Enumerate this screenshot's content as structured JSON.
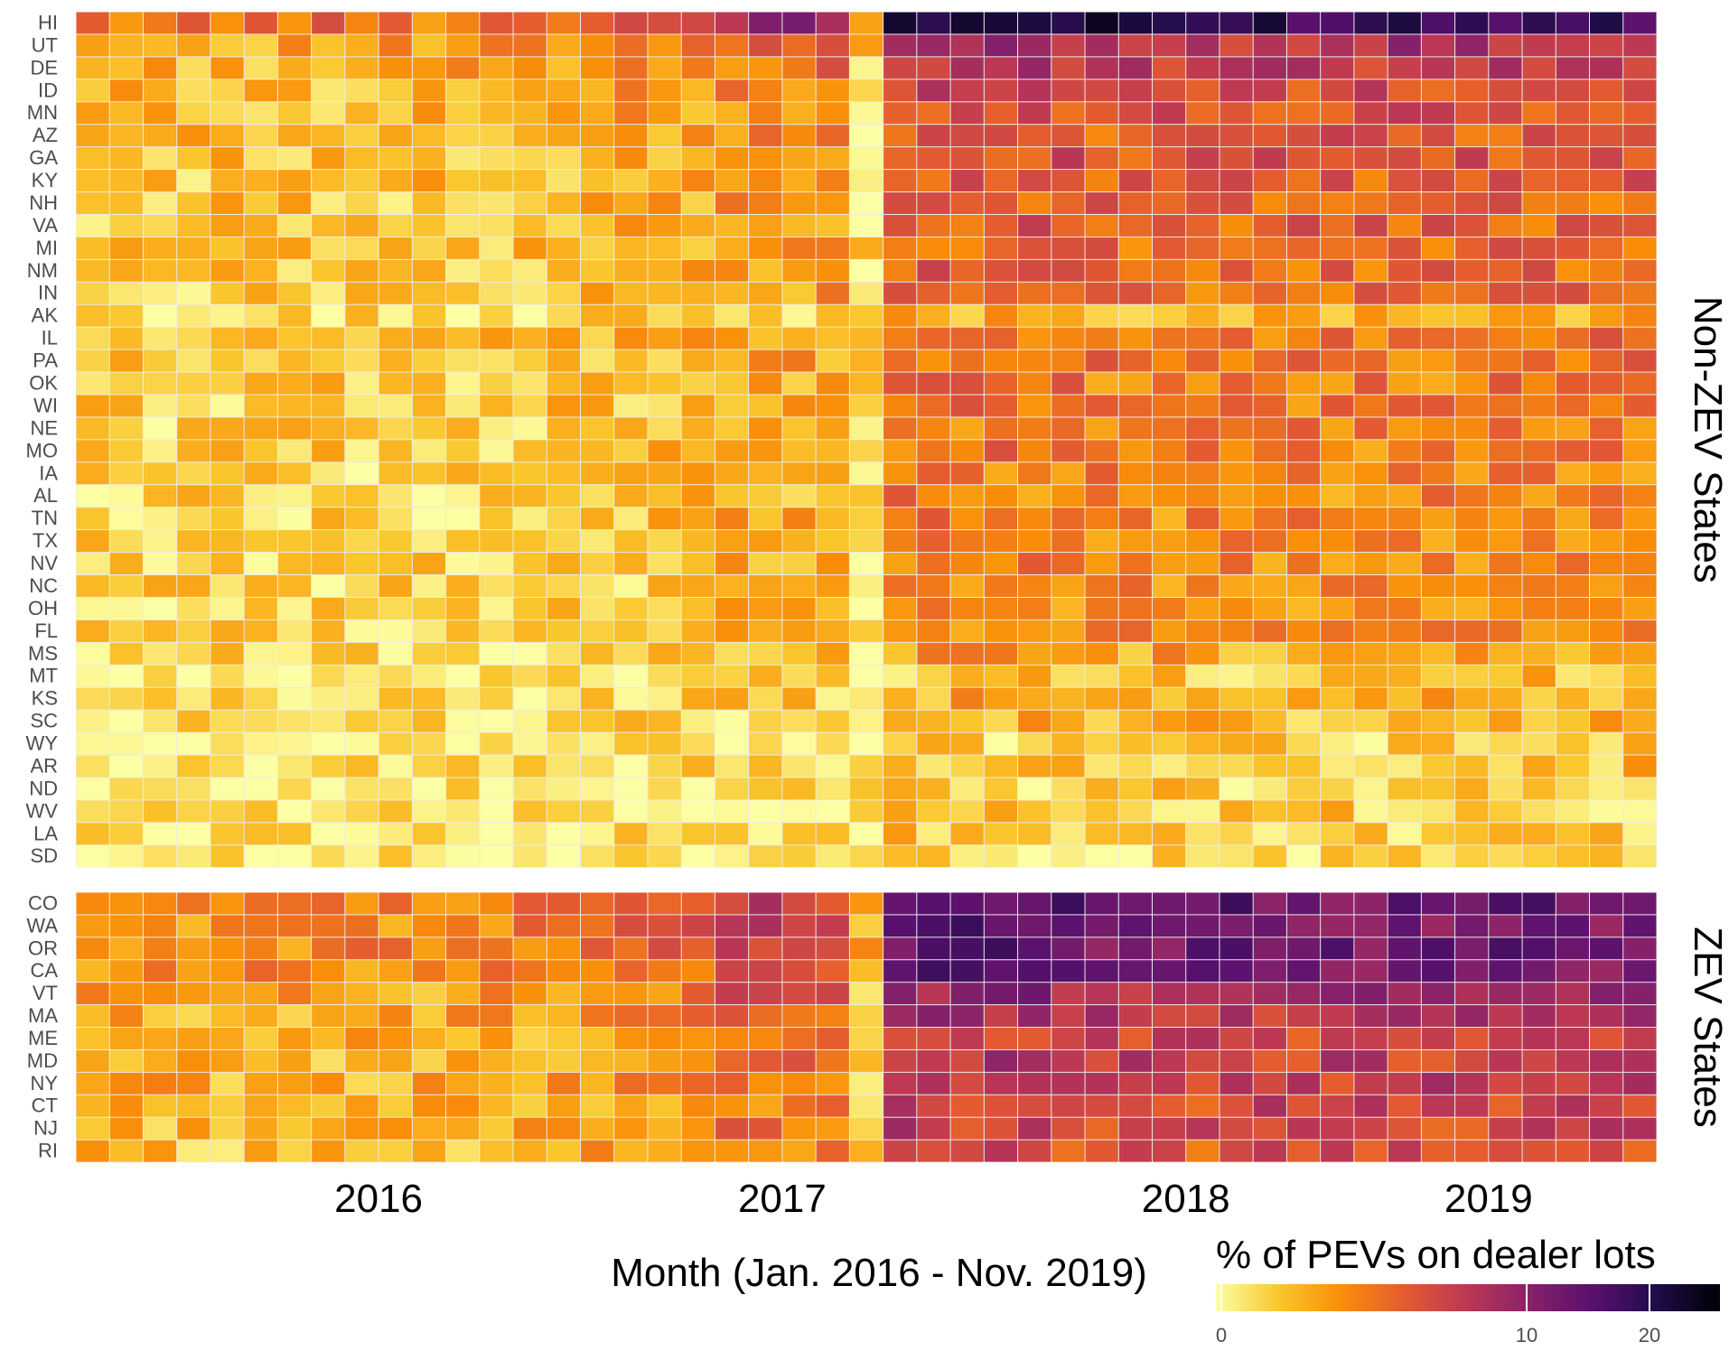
{
  "chart_data": {
    "type": "heatmap",
    "xlabel": "Month (Jan. 2016 - Nov. 2019)",
    "x_tick_labels": [
      "2016",
      "2017",
      "2018",
      "2019"
    ],
    "months": 47,
    "legend": {
      "title": "% of PEVs on dealer lots",
      "ticks": [
        "0",
        "10",
        "20"
      ],
      "position": "bottom-right",
      "colors": [
        "#fcffa4",
        "#fac62d",
        "#f98e09",
        "#e45a31",
        "#bc3754",
        "#87216b",
        "#57106e",
        "#1f0c48",
        "#000004"
      ]
    },
    "value_scale_note": "values are intensity levels 0-10 on the legend color ramp",
    "panels": [
      {
        "label": "Non-ZEV States",
        "rows": [
          {
            "state": "HI",
            "base": 5.8,
            "vals": []
          },
          {
            "state": "UT",
            "base": 3.6
          },
          {
            "state": "DE",
            "base": 3.2
          },
          {
            "state": "ID",
            "base": 2.9
          },
          {
            "state": "MN",
            "base": 2.7
          },
          {
            "state": "AZ",
            "base": 2.6
          },
          {
            "state": "GA",
            "base": 2.6
          },
          {
            "state": "KY",
            "base": 2.5
          },
          {
            "state": "NH",
            "base": 2.4
          },
          {
            "state": "VA",
            "base": 2.4
          },
          {
            "state": "MI",
            "base": 2.3
          },
          {
            "state": "NM",
            "base": 2.3
          },
          {
            "state": "IN",
            "base": 2.2
          },
          {
            "state": "AK",
            "base": 1.2
          },
          {
            "state": "IL",
            "base": 2.1
          },
          {
            "state": "PA",
            "base": 2.1
          },
          {
            "state": "OK",
            "base": 2.0
          },
          {
            "state": "WI",
            "base": 2.0
          },
          {
            "state": "NE",
            "base": 1.9
          },
          {
            "state": "MO",
            "base": 2.0
          },
          {
            "state": "IA",
            "base": 1.9
          },
          {
            "state": "AL",
            "base": 1.8
          },
          {
            "state": "TN",
            "base": 1.8
          },
          {
            "state": "TX",
            "base": 1.8
          },
          {
            "state": "NV",
            "base": 1.8
          },
          {
            "state": "NC",
            "base": 1.7
          },
          {
            "state": "OH",
            "base": 1.7
          },
          {
            "state": "FL",
            "base": 1.7
          },
          {
            "state": "MS",
            "base": 1.4
          },
          {
            "state": "MT",
            "base": 0.9
          },
          {
            "state": "KS",
            "base": 1.2
          },
          {
            "state": "SC",
            "base": 1.1
          },
          {
            "state": "WY",
            "base": 0.7
          },
          {
            "state": "AR",
            "base": 1.0
          },
          {
            "state": "ND",
            "base": 0.7
          },
          {
            "state": "WV",
            "base": 0.8
          },
          {
            "state": "LA",
            "base": 0.8
          },
          {
            "state": "SD",
            "base": 0.6
          }
        ]
      },
      {
        "label": "ZEV States",
        "rows": [
          {
            "state": "CO",
            "base": 4.8
          },
          {
            "state": "WA",
            "base": 4.6
          },
          {
            "state": "OR",
            "base": 4.8
          },
          {
            "state": "CA",
            "base": 4.6
          },
          {
            "state": "VT",
            "base": 3.8
          },
          {
            "state": "MA",
            "base": 3.5
          },
          {
            "state": "ME",
            "base": 3.1
          },
          {
            "state": "MD",
            "base": 3.2
          },
          {
            "state": "NY",
            "base": 3.2
          },
          {
            "state": "CT",
            "base": 3.0
          },
          {
            "state": "NJ",
            "base": 3.0
          },
          {
            "state": "RI",
            "base": 2.7
          }
        ]
      }
    ]
  }
}
